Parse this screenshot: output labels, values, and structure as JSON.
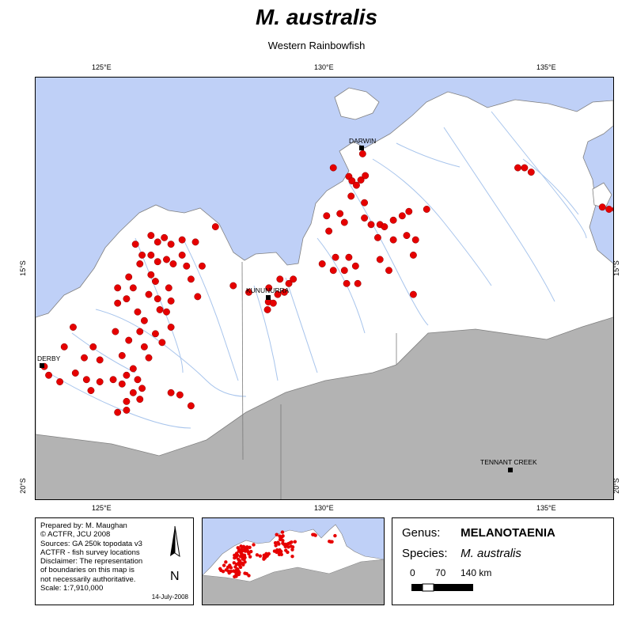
{
  "title": "M. australis",
  "subtitle": "Western Rainbowfish",
  "graticule": {
    "top_lon": [
      "125°E",
      "130°E",
      "135°E"
    ],
    "bottom_lon": [
      "125°E",
      "130°E",
      "135°E"
    ],
    "left_lat": [
      "15°S",
      "20°S"
    ],
    "right_lat": [
      "15°S",
      "20°S"
    ]
  },
  "towns": [
    {
      "name": "DARWIN"
    },
    {
      "name": "KUNUNURRA"
    },
    {
      "name": "DERBY"
    },
    {
      "name": "TENNANT CREEK"
    }
  ],
  "credits": {
    "lines": [
      "Prepared by: M. Maughan",
      "© ACTFR, JCU 2008",
      "Sources: GA 250k topodata v3",
      "ACTFR - fish survey locations",
      "Disclaimer: The representation",
      "of boundaries on this map is",
      "not necessarily authoritative.",
      "Scale: 1:7,910,000"
    ],
    "date": "14-July-2008"
  },
  "north_arrow": {
    "icon": "north-arrow-icon",
    "letter": "N"
  },
  "legend": {
    "genus_label": "Genus:",
    "genus_value": "MELANOTAENIA",
    "species_label": "Species:",
    "species_value": "M. australis",
    "scale_labels": [
      "0",
      "70",
      "140 km"
    ]
  },
  "colors": {
    "sea": "#bfd0f7",
    "land": "#ffffff",
    "outside_region": "#b3b3b3",
    "rivers": "#a7c4ec",
    "boundaries": "#7a7a7a",
    "records": "#e60000"
  },
  "sampling_site_records": {
    "lon_lat": [
      [
        130.86,
        -12.38
      ],
      [
        130.2,
        -12.7
      ],
      [
        130.55,
        -12.9
      ],
      [
        130.62,
        -13.0
      ],
      [
        130.72,
        -13.1
      ],
      [
        130.82,
        -12.98
      ],
      [
        130.92,
        -12.88
      ],
      [
        130.6,
        -13.35
      ],
      [
        130.9,
        -13.5
      ],
      [
        130.35,
        -13.75
      ],
      [
        130.05,
        -13.8
      ],
      [
        130.1,
        -14.15
      ],
      [
        130.45,
        -13.95
      ],
      [
        130.9,
        -13.85
      ],
      [
        131.05,
        -14.0
      ],
      [
        131.25,
        -14.0
      ],
      [
        131.35,
        -14.05
      ],
      [
        131.55,
        -13.9
      ],
      [
        131.75,
        -13.8
      ],
      [
        131.9,
        -13.7
      ],
      [
        132.3,
        -13.65
      ],
      [
        131.2,
        -14.3
      ],
      [
        131.55,
        -14.35
      ],
      [
        131.85,
        -14.25
      ],
      [
        132.05,
        -14.35
      ],
      [
        132.0,
        -14.7
      ],
      [
        131.25,
        -14.8
      ],
      [
        130.25,
        -14.75
      ],
      [
        130.55,
        -14.75
      ],
      [
        130.7,
        -14.95
      ],
      [
        130.45,
        -15.05
      ],
      [
        130.2,
        -15.05
      ],
      [
        129.95,
        -14.9
      ],
      [
        131.45,
        -15.05
      ],
      [
        130.5,
        -15.35
      ],
      [
        130.75,
        -15.35
      ],
      [
        132.0,
        -15.6
      ],
      [
        134.35,
        -12.7
      ],
      [
        134.5,
        -12.7
      ],
      [
        134.65,
        -12.8
      ],
      [
        136.25,
        -13.6
      ],
      [
        136.4,
        -13.65
      ],
      [
        136.55,
        -13.65
      ],
      [
        136.9,
        -12.85
      ],
      [
        128.74,
        -15.77
      ],
      [
        128.3,
        -15.55
      ],
      [
        128.75,
        -15.45
      ],
      [
        128.85,
        -15.8
      ],
      [
        128.72,
        -15.95
      ],
      [
        128.95,
        -15.6
      ],
      [
        129.1,
        -15.55
      ],
      [
        129.2,
        -15.35
      ],
      [
        129.3,
        -15.25
      ],
      [
        129.0,
        -15.25
      ],
      [
        127.95,
        -15.4
      ],
      [
        126.1,
        -14.25
      ],
      [
        126.25,
        -14.4
      ],
      [
        126.4,
        -14.3
      ],
      [
        126.55,
        -14.45
      ],
      [
        126.8,
        -14.35
      ],
      [
        127.1,
        -14.4
      ],
      [
        127.55,
        -14.05
      ],
      [
        126.1,
        -14.7
      ],
      [
        126.25,
        -14.85
      ],
      [
        126.45,
        -14.8
      ],
      [
        126.6,
        -14.9
      ],
      [
        126.8,
        -14.7
      ],
      [
        126.9,
        -14.95
      ],
      [
        127.25,
        -14.95
      ],
      [
        125.75,
        -14.45
      ],
      [
        125.9,
        -14.7
      ],
      [
        125.85,
        -14.9
      ],
      [
        126.1,
        -15.15
      ],
      [
        126.2,
        -15.3
      ],
      [
        127.0,
        -15.25
      ],
      [
        125.6,
        -15.2
      ],
      [
        125.35,
        -15.45
      ],
      [
        125.7,
        -15.45
      ],
      [
        125.55,
        -15.7
      ],
      [
        125.35,
        -15.8
      ],
      [
        126.05,
        -15.6
      ],
      [
        126.25,
        -15.7
      ],
      [
        126.5,
        -15.45
      ],
      [
        126.55,
        -15.75
      ],
      [
        127.15,
        -15.65
      ],
      [
        125.8,
        -16.0
      ],
      [
        125.95,
        -16.2
      ],
      [
        126.3,
        -15.95
      ],
      [
        126.45,
        -16.0
      ],
      [
        126.55,
        -16.35
      ],
      [
        126.2,
        -16.5
      ],
      [
        125.85,
        -16.45
      ],
      [
        125.6,
        -16.65
      ],
      [
        125.3,
        -16.45
      ],
      [
        125.45,
        -17.0
      ],
      [
        125.95,
        -16.8
      ],
      [
        126.05,
        -17.05
      ],
      [
        126.35,
        -16.7
      ],
      [
        124.35,
        -16.35
      ],
      [
        124.15,
        -16.8
      ],
      [
        124.8,
        -16.8
      ],
      [
        123.7,
        -17.25
      ],
      [
        123.8,
        -17.45
      ],
      [
        124.05,
        -17.6
      ],
      [
        124.4,
        -17.4
      ],
      [
        124.65,
        -17.55
      ],
      [
        124.95,
        -17.6
      ],
      [
        125.25,
        -17.55
      ],
      [
        125.45,
        -17.65
      ],
      [
        125.55,
        -17.45
      ],
      [
        125.7,
        -17.3
      ],
      [
        125.8,
        -17.55
      ],
      [
        125.9,
        -17.75
      ],
      [
        125.7,
        -17.85
      ],
      [
        125.55,
        -18.05
      ],
      [
        125.85,
        -18.0
      ],
      [
        126.55,
        -17.85
      ],
      [
        126.75,
        -17.9
      ],
      [
        127.0,
        -18.15
      ],
      [
        125.35,
        -18.3
      ],
      [
        125.55,
        -18.25
      ],
      [
        124.75,
        -17.8
      ],
      [
        124.95,
        -17.1
      ],
      [
        124.6,
        -17.05
      ]
    ]
  }
}
